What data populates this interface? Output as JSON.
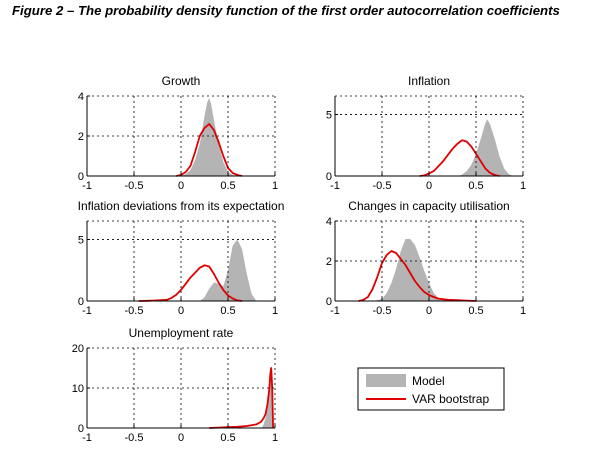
{
  "figure": {
    "title": "Figure 2 – The probability density function of the first order autocorrelation coefficients"
  },
  "legend": {
    "items": [
      {
        "label": "Model",
        "color": "#b4b4b4",
        "kind": "area"
      },
      {
        "label": "VAR bootstrap",
        "color": "#e00000",
        "kind": "line"
      }
    ]
  },
  "colors": {
    "model_fill": "#b4b4b4",
    "bootstrap_line": "#e00000",
    "axis": "#000000",
    "grid": "#000000"
  },
  "chart_data": [
    {
      "type": "area",
      "title": "Growth",
      "xlabel": "",
      "ylabel": "",
      "xlim": [
        -1,
        1
      ],
      "ylim": [
        0,
        4
      ],
      "xticks": [
        -1,
        -0.5,
        0,
        0.5,
        1
      ],
      "yticks": [
        0,
        2,
        4
      ],
      "grid": true,
      "series": [
        {
          "name": "Model",
          "type": "area",
          "x": [
            0.0,
            0.05,
            0.1,
            0.15,
            0.2,
            0.25,
            0.28,
            0.3,
            0.32,
            0.35,
            0.4,
            0.45,
            0.5,
            0.55,
            0.6
          ],
          "y": [
            0,
            0.1,
            0.3,
            0.8,
            1.6,
            3.0,
            3.7,
            3.9,
            3.6,
            2.8,
            1.6,
            0.7,
            0.2,
            0.05,
            0
          ]
        },
        {
          "name": "VAR bootstrap",
          "type": "line",
          "x": [
            -0.05,
            0.0,
            0.05,
            0.1,
            0.15,
            0.2,
            0.25,
            0.3,
            0.35,
            0.4,
            0.45,
            0.5,
            0.55,
            0.6,
            0.65
          ],
          "y": [
            0,
            0.05,
            0.2,
            0.5,
            1.2,
            2.0,
            2.4,
            2.6,
            2.3,
            1.7,
            1.0,
            0.4,
            0.15,
            0.05,
            0
          ]
        }
      ]
    },
    {
      "type": "area",
      "title": "Inflation",
      "xlabel": "",
      "ylabel": "",
      "xlim": [
        -1,
        1
      ],
      "ylim": [
        0,
        6.5
      ],
      "xticks": [
        -1,
        -0.5,
        0,
        0.5,
        1
      ],
      "yticks": [
        0,
        5
      ],
      "grid": true,
      "series": [
        {
          "name": "Model",
          "type": "area",
          "x": [
            0.3,
            0.35,
            0.4,
            0.45,
            0.5,
            0.55,
            0.58,
            0.6,
            0.62,
            0.65,
            0.7,
            0.75,
            0.8,
            0.85,
            0.9
          ],
          "y": [
            0,
            0.1,
            0.4,
            0.9,
            1.8,
            3.0,
            3.8,
            4.3,
            4.6,
            4.2,
            3.0,
            1.6,
            0.6,
            0.15,
            0
          ]
        },
        {
          "name": "VAR bootstrap",
          "type": "line",
          "x": [
            -0.1,
            -0.05,
            0.0,
            0.05,
            0.1,
            0.15,
            0.2,
            0.25,
            0.3,
            0.35,
            0.4,
            0.45,
            0.5,
            0.55,
            0.6,
            0.65,
            0.7,
            0.75
          ],
          "y": [
            0,
            0.05,
            0.2,
            0.4,
            0.8,
            1.2,
            1.7,
            2.2,
            2.6,
            2.9,
            2.8,
            2.4,
            1.8,
            1.2,
            0.6,
            0.25,
            0.08,
            0
          ]
        }
      ]
    },
    {
      "type": "area",
      "title": "Inflation deviations from its expectation",
      "xlabel": "",
      "ylabel": "",
      "xlim": [
        -1,
        1
      ],
      "ylim": [
        0,
        6.5
      ],
      "xticks": [
        -1,
        -0.5,
        0,
        0.5,
        1
      ],
      "yticks": [
        0,
        5
      ],
      "grid": true,
      "series": [
        {
          "name": "Model",
          "type": "area",
          "x": [
            0.2,
            0.25,
            0.3,
            0.35,
            0.4,
            0.45,
            0.5,
            0.55,
            0.6,
            0.65,
            0.7,
            0.75,
            0.8
          ],
          "y": [
            0,
            0.3,
            1.0,
            1.5,
            1.4,
            1.2,
            2.5,
            4.5,
            5.0,
            4.2,
            2.2,
            0.6,
            0
          ]
        },
        {
          "name": "VAR bootstrap",
          "type": "line",
          "x": [
            -0.45,
            -0.35,
            -0.25,
            -0.15,
            -0.1,
            -0.05,
            0.0,
            0.05,
            0.1,
            0.15,
            0.2,
            0.25,
            0.3,
            0.35,
            0.4,
            0.45,
            0.5,
            0.55,
            0.6,
            0.65
          ],
          "y": [
            0,
            0.02,
            0.05,
            0.1,
            0.25,
            0.5,
            0.9,
            1.4,
            1.9,
            2.3,
            2.7,
            2.9,
            2.8,
            2.2,
            1.5,
            0.9,
            0.45,
            0.2,
            0.05,
            0
          ]
        }
      ]
    },
    {
      "type": "area",
      "title": "Changes in capacity utilisation",
      "xlabel": "",
      "ylabel": "",
      "xlim": [
        -1,
        1
      ],
      "ylim": [
        0,
        4
      ],
      "xticks": [
        -1,
        -0.5,
        0,
        0.5,
        1
      ],
      "yticks": [
        0,
        2,
        4
      ],
      "grid": true,
      "series": [
        {
          "name": "Model",
          "type": "area",
          "x": [
            -0.6,
            -0.5,
            -0.45,
            -0.4,
            -0.35,
            -0.3,
            -0.25,
            -0.2,
            -0.15,
            -0.1,
            -0.05,
            0.0,
            0.05,
            0.1,
            0.15,
            0.2
          ],
          "y": [
            0,
            0.1,
            0.4,
            0.9,
            1.6,
            2.5,
            3.1,
            3.1,
            2.8,
            2.2,
            1.5,
            0.9,
            0.4,
            0.15,
            0.05,
            0
          ]
        },
        {
          "name": "VAR bootstrap",
          "type": "line",
          "x": [
            -0.75,
            -0.7,
            -0.65,
            -0.6,
            -0.55,
            -0.5,
            -0.45,
            -0.4,
            -0.35,
            -0.3,
            -0.25,
            -0.2,
            -0.15,
            -0.1,
            -0.05,
            0.0,
            0.05,
            0.1,
            0.2,
            0.3,
            0.4,
            0.5
          ],
          "y": [
            0,
            0.05,
            0.2,
            0.6,
            1.2,
            1.9,
            2.3,
            2.5,
            2.4,
            2.1,
            1.8,
            1.4,
            1.0,
            0.7,
            0.45,
            0.3,
            0.2,
            0.12,
            0.06,
            0.04,
            0.02,
            0
          ]
        }
      ]
    },
    {
      "type": "area",
      "title": "Unemployment rate",
      "xlabel": "",
      "ylabel": "",
      "xlim": [
        -1,
        1
      ],
      "ylim": [
        0,
        20
      ],
      "xticks": [
        -1,
        -0.5,
        0,
        0.5,
        1
      ],
      "yticks": [
        0,
        10,
        20
      ],
      "grid": true,
      "series": [
        {
          "name": "Model",
          "type": "area",
          "x": [
            0.86,
            0.88,
            0.9,
            0.92,
            0.94,
            0.95,
            0.96,
            0.97,
            0.98
          ],
          "y": [
            0,
            1.0,
            2.5,
            5.0,
            9.0,
            13.0,
            15.5,
            8.0,
            0
          ]
        },
        {
          "name": "VAR bootstrap",
          "type": "line",
          "x": [
            0.3,
            0.4,
            0.5,
            0.6,
            0.7,
            0.8,
            0.85,
            0.88,
            0.9,
            0.92,
            0.94,
            0.95,
            0.96,
            0.97,
            0.98
          ],
          "y": [
            0,
            0.1,
            0.2,
            0.3,
            0.5,
            0.9,
            1.5,
            2.5,
            3.5,
            6.0,
            10.0,
            13.5,
            15.0,
            10.0,
            0
          ]
        }
      ]
    }
  ]
}
